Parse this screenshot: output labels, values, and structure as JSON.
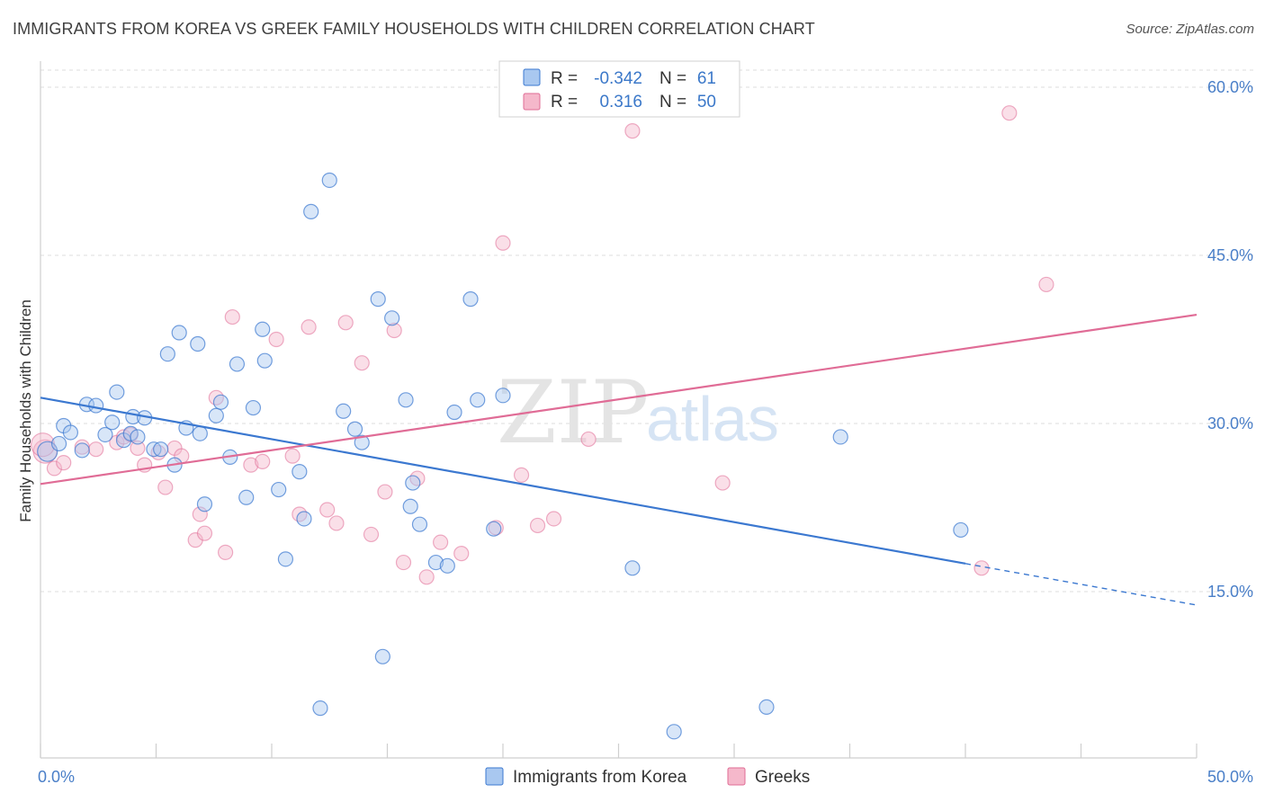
{
  "title": "IMMIGRANTS FROM KOREA VS GREEK FAMILY HOUSEHOLDS WITH CHILDREN CORRELATION CHART",
  "source": "Source: ZipAtlas.com",
  "watermark": {
    "zip": "ZIP",
    "atlas": "atlas"
  },
  "colors": {
    "blue": "#3b78d0",
    "blue_fill": "#a9c8f0",
    "pink": "#e06c96",
    "pink_fill": "#f5b8cb",
    "tick_text": "#4a7fc8"
  },
  "legend": {
    "rows": [
      {
        "r_label": "R =",
        "r_value": "-0.342",
        "n_label": "N =",
        "n_value": "61"
      },
      {
        "r_label": "R =",
        "r_value": "0.316",
        "n_label": "N =",
        "n_value": "50"
      }
    ]
  },
  "bottom_legend": {
    "items": [
      "Immigrants from Korea",
      "Greeks"
    ]
  },
  "chart_data": {
    "type": "scatter",
    "title": "IMMIGRANTS FROM KOREA VS GREEK FAMILY HOUSEHOLDS WITH CHILDREN CORRELATION CHART",
    "xlabel": "",
    "ylabel": "Family Households with Children",
    "xlim": [
      0,
      50
    ],
    "ylim": [
      0,
      60
    ],
    "x_tick_labels": [
      "0.0%",
      "50.0%"
    ],
    "y_tick_labels": [
      "15.0%",
      "30.0%",
      "45.0%",
      "60.0%"
    ],
    "y_ticks": [
      15,
      30,
      45,
      60
    ],
    "grid": true,
    "legend_position": "top-center",
    "series": [
      {
        "name": "Immigrants from Korea",
        "trend": {
          "x": [
            0,
            40
          ],
          "y": [
            32.3,
            17.5
          ],
          "dashed_to": [
            50,
            13.8
          ]
        },
        "points": [
          [
            0.3,
            27.5
          ],
          [
            0.8,
            28.2
          ],
          [
            1.0,
            29.8
          ],
          [
            1.3,
            29.2
          ],
          [
            1.8,
            27.6
          ],
          [
            2.0,
            31.7
          ],
          [
            2.4,
            31.6
          ],
          [
            2.8,
            29.0
          ],
          [
            3.1,
            30.1
          ],
          [
            3.3,
            32.8
          ],
          [
            3.6,
            28.5
          ],
          [
            3.9,
            29.1
          ],
          [
            4.0,
            30.6
          ],
          [
            4.2,
            28.8
          ],
          [
            4.5,
            30.5
          ],
          [
            4.9,
            27.7
          ],
          [
            5.2,
            27.7
          ],
          [
            5.5,
            36.2
          ],
          [
            5.8,
            26.3
          ],
          [
            6.0,
            38.1
          ],
          [
            6.3,
            29.6
          ],
          [
            6.8,
            37.1
          ],
          [
            6.9,
            29.1
          ],
          [
            7.1,
            22.8
          ],
          [
            7.6,
            30.7
          ],
          [
            7.8,
            31.9
          ],
          [
            8.2,
            27.0
          ],
          [
            8.5,
            35.3
          ],
          [
            8.9,
            23.4
          ],
          [
            9.2,
            31.4
          ],
          [
            9.6,
            38.4
          ],
          [
            9.7,
            35.6
          ],
          [
            10.3,
            24.1
          ],
          [
            10.6,
            17.9
          ],
          [
            11.2,
            25.7
          ],
          [
            11.4,
            21.5
          ],
          [
            11.7,
            48.9
          ],
          [
            12.1,
            4.6
          ],
          [
            12.5,
            51.7
          ],
          [
            13.1,
            31.1
          ],
          [
            13.6,
            29.5
          ],
          [
            13.9,
            28.3
          ],
          [
            14.6,
            41.1
          ],
          [
            14.8,
            9.2
          ],
          [
            15.2,
            39.4
          ],
          [
            15.8,
            32.1
          ],
          [
            16.0,
            22.6
          ],
          [
            16.1,
            24.7
          ],
          [
            16.4,
            21.0
          ],
          [
            17.1,
            17.6
          ],
          [
            17.6,
            17.3
          ],
          [
            17.9,
            31.0
          ],
          [
            18.6,
            41.1
          ],
          [
            18.9,
            32.1
          ],
          [
            19.6,
            20.6
          ],
          [
            20.0,
            32.5
          ],
          [
            25.6,
            17.1
          ],
          [
            27.4,
            2.5
          ],
          [
            31.4,
            4.7
          ],
          [
            34.6,
            28.8
          ],
          [
            39.8,
            20.5
          ]
        ]
      },
      {
        "name": "Greeks",
        "trend": {
          "x": [
            0,
            50
          ],
          "y": [
            24.6,
            39.7
          ]
        },
        "points": [
          [
            0.2,
            27.5
          ],
          [
            0.6,
            26.0
          ],
          [
            1.0,
            26.5
          ],
          [
            1.8,
            27.9
          ],
          [
            2.4,
            27.7
          ],
          [
            3.3,
            28.3
          ],
          [
            3.6,
            28.8
          ],
          [
            3.9,
            29.0
          ],
          [
            4.2,
            27.8
          ],
          [
            4.5,
            26.3
          ],
          [
            5.1,
            27.4
          ],
          [
            5.4,
            24.3
          ],
          [
            5.8,
            27.8
          ],
          [
            6.1,
            27.1
          ],
          [
            6.7,
            19.6
          ],
          [
            6.9,
            21.9
          ],
          [
            7.1,
            20.2
          ],
          [
            7.6,
            32.3
          ],
          [
            8.0,
            18.5
          ],
          [
            8.3,
            39.5
          ],
          [
            9.1,
            26.3
          ],
          [
            9.6,
            26.6
          ],
          [
            10.2,
            37.5
          ],
          [
            10.9,
            27.1
          ],
          [
            11.2,
            21.9
          ],
          [
            11.6,
            38.6
          ],
          [
            12.4,
            22.3
          ],
          [
            12.8,
            21.1
          ],
          [
            13.2,
            39.0
          ],
          [
            13.9,
            35.4
          ],
          [
            14.3,
            20.1
          ],
          [
            14.9,
            23.9
          ],
          [
            15.3,
            38.3
          ],
          [
            15.7,
            17.6
          ],
          [
            16.3,
            25.1
          ],
          [
            16.7,
            16.3
          ],
          [
            17.3,
            19.4
          ],
          [
            18.2,
            18.4
          ],
          [
            19.7,
            20.7
          ],
          [
            20.0,
            46.1
          ],
          [
            20.8,
            25.4
          ],
          [
            21.5,
            20.9
          ],
          [
            22.2,
            21.5
          ],
          [
            23.7,
            28.6
          ],
          [
            25.6,
            56.1
          ],
          [
            29.5,
            24.7
          ],
          [
            40.7,
            17.1
          ],
          [
            41.9,
            57.7
          ],
          [
            43.5,
            42.4
          ],
          [
            0.1,
            28.1
          ]
        ]
      }
    ]
  }
}
